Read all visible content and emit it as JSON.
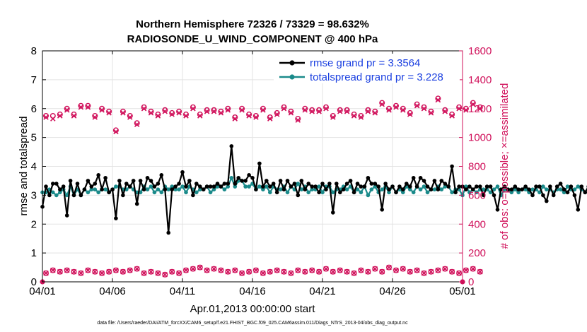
{
  "chart_data": {
    "type": "line",
    "title": "Northern Hemisphere 72326 / 73329 = 98.632%",
    "subtitle": "RADIOSONDE_U_WIND_COMPONENT @ 400 hPa",
    "xlabel": "Apr.01,2013 00:00:00 start",
    "ylabel": "rmse and totalspread",
    "ylabel_right": "# of obs: o=possible; ×=assimilated",
    "xlim": [
      0,
      30
    ],
    "ylim": [
      0,
      8
    ],
    "ylim_right": [
      0,
      1600
    ],
    "x_ticks": [
      0,
      5,
      10,
      15,
      20,
      25,
      30
    ],
    "x_tick_labels": [
      "04/01",
      "04/06",
      "04/11",
      "04/16",
      "04/21",
      "04/26",
      "05/01"
    ],
    "y_ticks": [
      0,
      1,
      2,
      3,
      4,
      5,
      6,
      7,
      8
    ],
    "y_ticks_right": [
      0,
      200,
      400,
      600,
      800,
      1000,
      1200,
      1400,
      1600
    ],
    "grid": true,
    "legend_position": "top-right",
    "legend": [
      "rmse grand pr = 3.3564",
      "totalspread grand pr = 3.228"
    ],
    "footnote": "data file: /Users/raeder/DAI/ATM_forcXX/CAM6_setup/f.e21.FHIST_BGC.f09_025.CAM6assim.011/Diags_NTrS_2013-04/obs_diag_output.nc",
    "x_step_days": 0.25,
    "series": [
      {
        "name": "rmse",
        "color": "#000000",
        "axis": "left",
        "values": [
          2.6,
          3.3,
          3.0,
          3.4,
          3.4,
          3.2,
          3.3,
          2.3,
          3.5,
          3.0,
          3.4,
          3.0,
          3.2,
          3.5,
          3.3,
          3.4,
          3.7,
          3.2,
          3.6,
          3.1,
          3.2,
          2.2,
          3.5,
          3.0,
          3.4,
          3.3,
          3.5,
          2.7,
          3.5,
          3.2,
          3.6,
          3.5,
          3.3,
          3.4,
          3.7,
          3.2,
          1.7,
          3.2,
          3.3,
          3.4,
          3.8,
          3.3,
          3.5,
          3.0,
          3.4,
          3.3,
          3.2,
          3.3,
          3.3,
          3.3,
          3.4,
          3.3,
          3.4,
          3.4,
          4.7,
          3.4,
          3.6,
          3.5,
          3.5,
          3.7,
          3.6,
          3.2,
          4.1,
          3.3,
          3.5,
          3.3,
          3.4,
          3.1,
          3.5,
          3.2,
          3.5,
          3.3,
          3.4,
          3.0,
          3.5,
          3.2,
          3.4,
          3.3,
          3.3,
          3.1,
          3.4,
          3.2,
          3.4,
          2.4,
          3.4,
          3.1,
          3.2,
          3.4,
          3.5,
          3.1,
          3.4,
          3.3,
          3.3,
          3.6,
          3.4,
          3.4,
          3.3,
          2.5,
          3.4,
          3.2,
          3.3,
          3.1,
          3.3,
          3.2,
          3.4,
          3.3,
          3.6,
          3.3,
          3.6,
          3.5,
          3.3,
          3.2,
          3.5,
          3.2,
          3.5,
          3.4,
          3.3,
          4.0,
          3.1,
          3.3,
          3.3,
          3.2,
          3.3,
          3.2,
          3.3,
          3.3,
          3.0,
          3.3,
          3.3,
          3.0,
          2.5,
          3.2,
          3.3,
          3.2,
          3.2,
          3.3,
          3.2,
          3.2,
          3.3,
          3.2,
          3.0,
          3.3,
          3.3,
          3.0,
          2.8,
          3.3,
          3.0,
          3.3,
          3.4,
          3.2,
          3.1,
          3.3,
          3.0,
          2.5,
          3.3,
          3.1,
          3.3,
          3.1,
          3.0,
          3.3,
          3.4,
          3.2,
          3.2,
          3.3,
          3.2,
          3.4,
          3.2,
          3.3,
          3.1,
          3.2,
          3.3,
          3.6,
          3.4,
          3.2,
          3.6,
          3.3,
          3.5,
          3.3,
          3.5,
          3.5,
          3.5,
          3.4,
          3.5,
          3.2,
          3.3,
          3.4,
          3.2,
          3.3,
          3.0,
          3.3,
          3.5,
          3.5,
          3.3,
          2.9,
          3.3,
          3.2,
          3.4,
          4.3,
          3.3,
          3.2
        ]
      },
      {
        "name": "totalspread",
        "color": "#1a8a8a",
        "axis": "left",
        "values": [
          3.1,
          3.1,
          3.2,
          3.1,
          3.0,
          3.1,
          3.2,
          3.0,
          3.3,
          3.0,
          3.2,
          3.0,
          3.2,
          3.1,
          3.2,
          3.2,
          3.1,
          3.2,
          3.2,
          3.1,
          3.2,
          3.3,
          3.3,
          3.2,
          3.2,
          3.3,
          3.2,
          3.1,
          3.1,
          3.3,
          3.2,
          3.3,
          3.1,
          3.2,
          3.1,
          3.3,
          3.2,
          3.3,
          3.2,
          3.2,
          3.3,
          3.1,
          3.3,
          3.2,
          3.1,
          3.2,
          3.2,
          3.3,
          3.1,
          3.2,
          3.3,
          3.3,
          3.2,
          3.3,
          3.6,
          3.3,
          3.5,
          3.5,
          3.3,
          3.3,
          3.4,
          3.2,
          3.3,
          3.2,
          3.3,
          3.1,
          3.3,
          3.2,
          3.2,
          3.3,
          3.1,
          3.3,
          3.2,
          3.4,
          3.2,
          3.3,
          3.1,
          3.2,
          3.2,
          3.3,
          3.1,
          3.3,
          3.3,
          3.1,
          3.2,
          3.2,
          3.3,
          3.2,
          3.3,
          3.1,
          3.2,
          3.1,
          3.3,
          3.0,
          3.2,
          3.3,
          3.1,
          3.2,
          3.3,
          3.1,
          3.3,
          3.1,
          3.2,
          3.1,
          3.3,
          3.2,
          3.1,
          3.3,
          3.2,
          3.3,
          3.1,
          3.2,
          3.2,
          3.3,
          3.2,
          3.3,
          3.3,
          3.1,
          3.2,
          3.2,
          3.0,
          3.3,
          3.1,
          3.2,
          3.1,
          3.2,
          3.2,
          3.2,
          3.1,
          3.2,
          3.3,
          3.0,
          3.2,
          3.2,
          3.1,
          3.2,
          3.1,
          3.2,
          3.2,
          3.1,
          3.2,
          3.2,
          3.1,
          3.3,
          3.2,
          3.2,
          3.1,
          3.2,
          3.2,
          3.1,
          3.3,
          3.2,
          3.2,
          3.3,
          3.2,
          3.1,
          3.3,
          3.1,
          3.2,
          3.2,
          3.3,
          3.2,
          3.2,
          3.3,
          3.1,
          3.2,
          3.1,
          3.2,
          3.3,
          3.1,
          3.3,
          3.2,
          3.3,
          3.1,
          3.3,
          3.2,
          3.3,
          3.3,
          3.2,
          3.3,
          3.2,
          3.3,
          3.2,
          3.3,
          3.2,
          3.2,
          3.3,
          3.2,
          3.2,
          3.4,
          3.2,
          3.3,
          3.3,
          3.2,
          3.2,
          3.3,
          3.2,
          3.3,
          3.2,
          3.2,
          3.3,
          3.3
        ]
      },
      {
        "name": "obs possible",
        "color": "#d0105a",
        "axis": "right",
        "marker": "circle",
        "values_every_half_day": [
          1150,
          1150,
          1160,
          1200,
          1160,
          1220,
          1220,
          1150,
          1200,
          1180,
          1050,
          1180,
          1150,
          1100,
          1210,
          1180,
          1160,
          1190,
          1170,
          1180,
          1160,
          1210,
          1160,
          1190,
          1190,
          1180,
          1200,
          1140,
          1200,
          1160,
          1150,
          1200,
          1140,
          1170,
          1210,
          1180,
          1130,
          1200,
          1190,
          1190,
          1210,
          1150,
          1190,
          1190,
          1160,
          1150,
          1190,
          1180,
          1240,
          1200,
          1220,
          1200,
          1170,
          1230,
          1210,
          1180,
          1270,
          1190,
          1160,
          1210,
          1200,
          1240,
          1210
        ],
        "values_at_ends": [
          0,
          0
        ]
      },
      {
        "name": "obs assimilated",
        "color": "#d0105a",
        "axis": "right",
        "marker": "x",
        "values_every_half_day": [
          1140,
          1130,
          1150,
          1190,
          1150,
          1210,
          1210,
          1140,
          1190,
          1170,
          1040,
          1170,
          1140,
          1090,
          1200,
          1170,
          1150,
          1180,
          1160,
          1170,
          1150,
          1200,
          1150,
          1180,
          1180,
          1170,
          1190,
          1130,
          1190,
          1150,
          1140,
          1190,
          1130,
          1160,
          1200,
          1170,
          1120,
          1190,
          1180,
          1180,
          1200,
          1140,
          1180,
          1180,
          1150,
          1140,
          1180,
          1170,
          1230,
          1190,
          1210,
          1190,
          1160,
          1220,
          1200,
          1170,
          1260,
          1180,
          1150,
          1200,
          1190,
          1230,
          1200
        ]
      },
      {
        "name": "obs near zero (possible & assimilated)",
        "color": "#d0105a",
        "axis": "right",
        "marker": "circle+x",
        "values_every_half_day": [
          60,
          80,
          70,
          80,
          70,
          60,
          80,
          70,
          60,
          70,
          80,
          70,
          80,
          90,
          60,
          70,
          60,
          50,
          70,
          60,
          80,
          90,
          100,
          80,
          90,
          80,
          70,
          80,
          60,
          70,
          80,
          60,
          70,
          80,
          70,
          60,
          80,
          70,
          80,
          70,
          90,
          70,
          80,
          70,
          60,
          80,
          70,
          90,
          70,
          100,
          80,
          90,
          70,
          80,
          60,
          70,
          80,
          90,
          70,
          60,
          80,
          90,
          70
        ]
      }
    ]
  }
}
